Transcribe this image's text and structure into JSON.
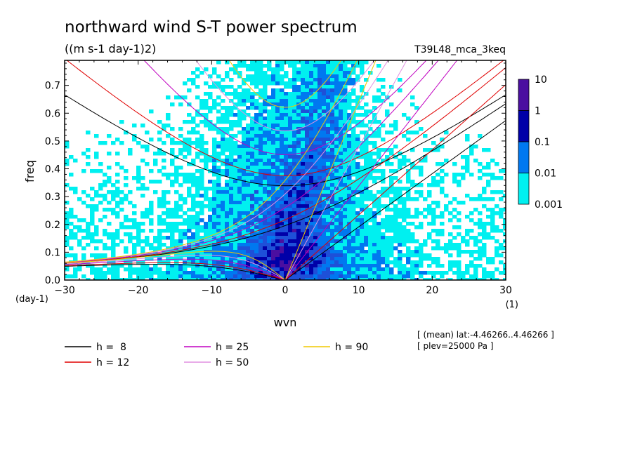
{
  "chart_data": {
    "type": "heatmap",
    "title": "northward wind S-T power spectrum",
    "subtitle": "((m s-1 day-1)2)",
    "run_label": "T39L48_mca_3keq",
    "xlabel": "wvn",
    "ylabel": "freq",
    "x_unit": "(1)",
    "y_unit": "(day-1)",
    "xlim": [
      -30,
      30
    ],
    "ylim": [
      0,
      0.79
    ],
    "x_ticks": [
      -30,
      -20,
      -10,
      0,
      10,
      20,
      30
    ],
    "y_ticks": [
      0.0,
      0.1,
      0.2,
      0.3,
      0.4,
      0.5,
      0.6,
      0.7
    ],
    "y_tick_labels": [
      "0.0",
      "0.1",
      "0.2",
      "0.3",
      "0.4",
      "0.5",
      "0.6",
      "0.7"
    ],
    "colorbar": {
      "levels": [
        "10",
        "1",
        "0.1",
        "0.01",
        "0.001"
      ],
      "colors": [
        "#4b0fa0",
        "#0000a8",
        "#1e50d8",
        "#0078f0",
        "#00f0f0"
      ]
    },
    "dispersion_curves": [
      {
        "name": "h =  8",
        "h": 8,
        "color": "#000000"
      },
      {
        "name": "h = 12",
        "h": 12,
        "color": "#e00000"
      },
      {
        "name": "h = 25",
        "h": 25,
        "color": "#c000c0"
      },
      {
        "name": "h = 50",
        "h": 50,
        "color": "#e090e0"
      },
      {
        "name": "h = 90",
        "h": 90,
        "color": "#f0c800"
      }
    ],
    "info": [
      "[ (mean) lat:-4.46266..4.46266 ]",
      "[ plev=25000 Pa ]"
    ]
  }
}
